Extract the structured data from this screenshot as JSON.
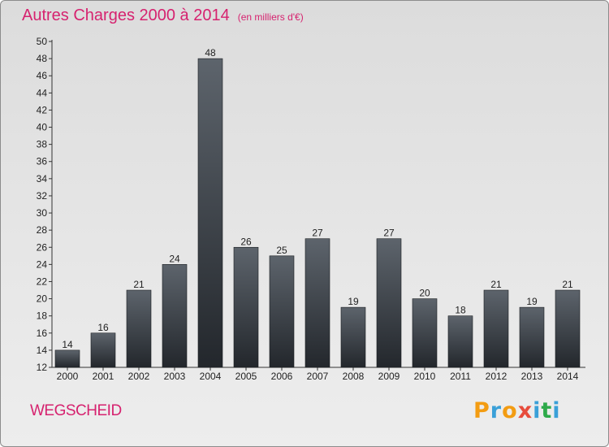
{
  "title": "Autres Charges 2000 à 2014",
  "unit": "(en milliers d'€)",
  "commune": "WEGSCHEID",
  "logo": {
    "letters": [
      "P",
      "r",
      "o",
      "x",
      "i",
      "t",
      "i"
    ],
    "colors": [
      "#f39c12",
      "#3aa0d8",
      "#f39c12",
      "#e74c3c",
      "#3aa0d8",
      "#2eaa4a",
      "#3aa0d8"
    ]
  },
  "colors": {
    "accent": "#d6226f",
    "bar_top": "#5d646c",
    "bar_bottom": "#23272c"
  },
  "chart_data": {
    "type": "bar",
    "categories": [
      "2000",
      "2001",
      "2002",
      "2003",
      "2004",
      "2005",
      "2006",
      "2007",
      "2008",
      "2009",
      "2010",
      "2011",
      "2012",
      "2013",
      "2014"
    ],
    "values": [
      14,
      16,
      21,
      24,
      48,
      26,
      25,
      27,
      19,
      27,
      20,
      18,
      21,
      19,
      21
    ],
    "ylim": [
      12,
      50
    ],
    "yticks": [
      12,
      14,
      16,
      18,
      20,
      22,
      24,
      26,
      28,
      30,
      32,
      34,
      36,
      38,
      40,
      42,
      44,
      46,
      48,
      50
    ],
    "grid": false
  }
}
